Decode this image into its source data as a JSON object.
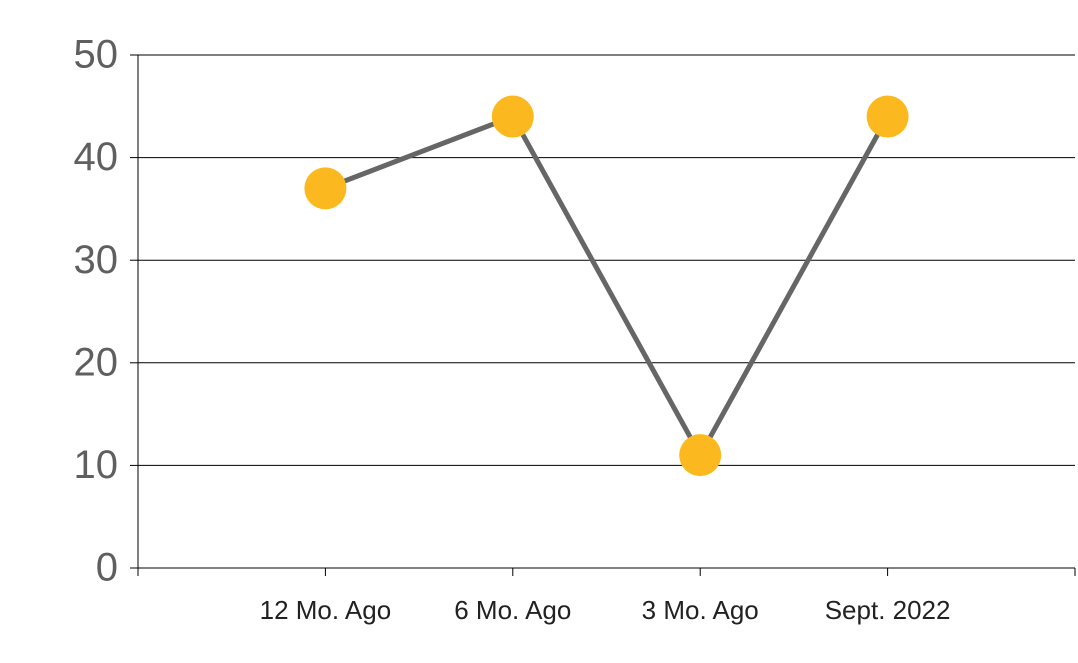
{
  "chart_data": {
    "type": "line",
    "categories": [
      "12 Mo. Ago",
      "6 Mo. Ago",
      "3 Mo. Ago",
      "Sept. 2022"
    ],
    "values": [
      37,
      44,
      11,
      44
    ],
    "line_color": "#666666",
    "marker_color": "#fbb91f",
    "ylim": [
      0,
      50
    ],
    "yticks": [
      0,
      10,
      20,
      30,
      40,
      50
    ],
    "grid": true
  }
}
